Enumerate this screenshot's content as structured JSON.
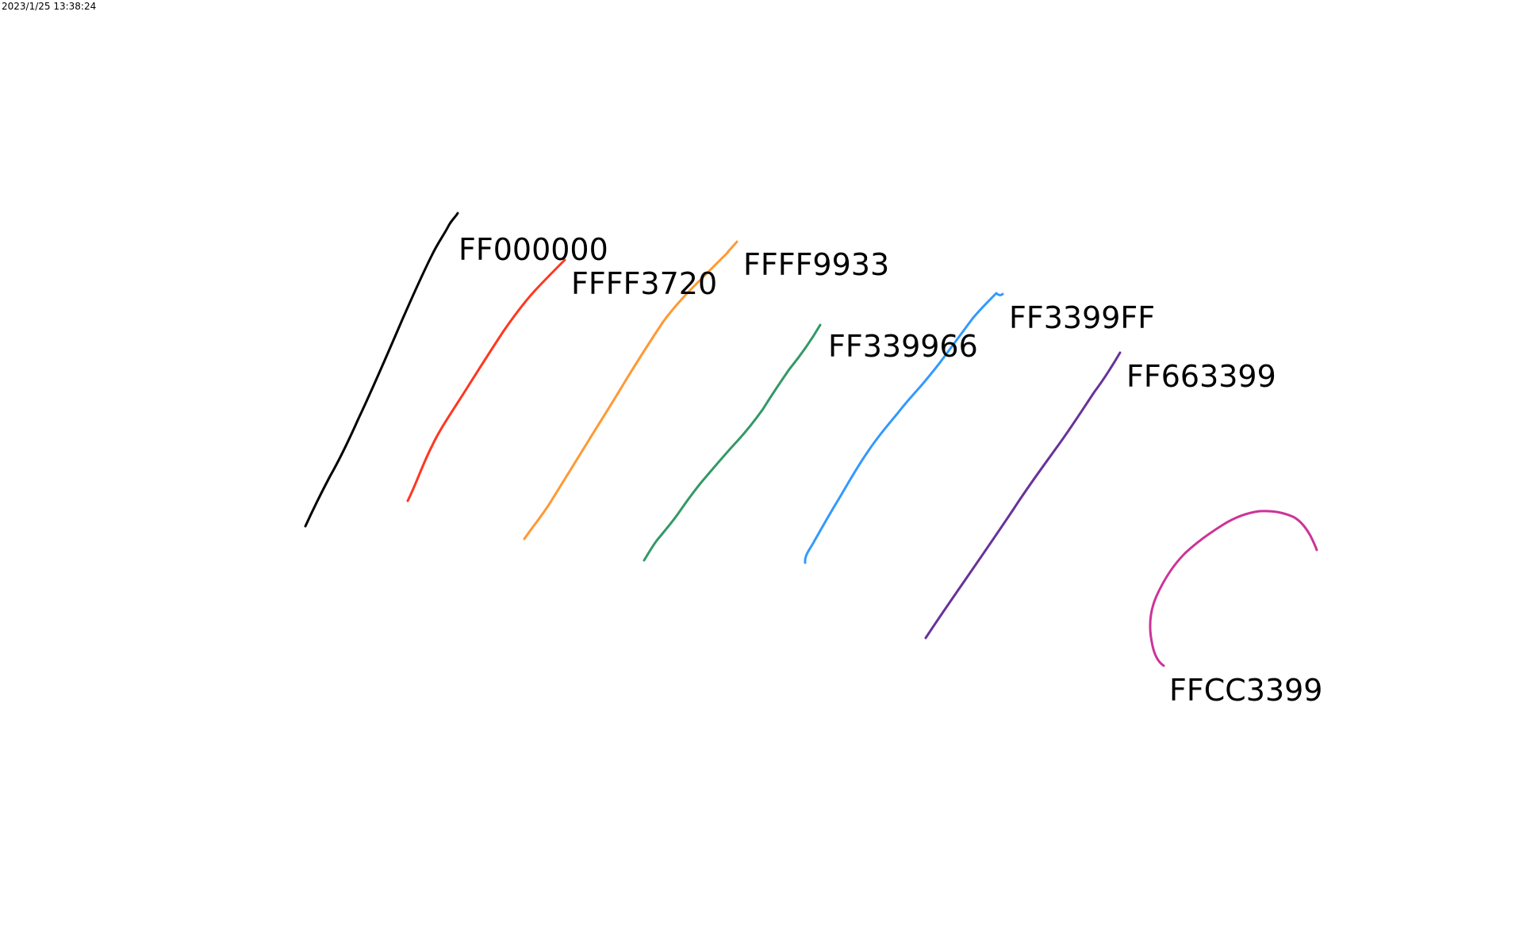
{
  "timestamp": "2023/1/25 13:38:24",
  "strokes": [
    {
      "label": "FF000000",
      "color": "#000000"
    },
    {
      "label": "FFFF3720",
      "color": "#FF3720"
    },
    {
      "label": "FFFF9933",
      "color": "#FF9933"
    },
    {
      "label": "FF339966",
      "color": "#339966"
    },
    {
      "label": "FF3399FF",
      "color": "#3399FF"
    },
    {
      "label": "FF663399",
      "color": "#663399"
    },
    {
      "label": "FFCC3399",
      "color": "#CC3399"
    }
  ]
}
